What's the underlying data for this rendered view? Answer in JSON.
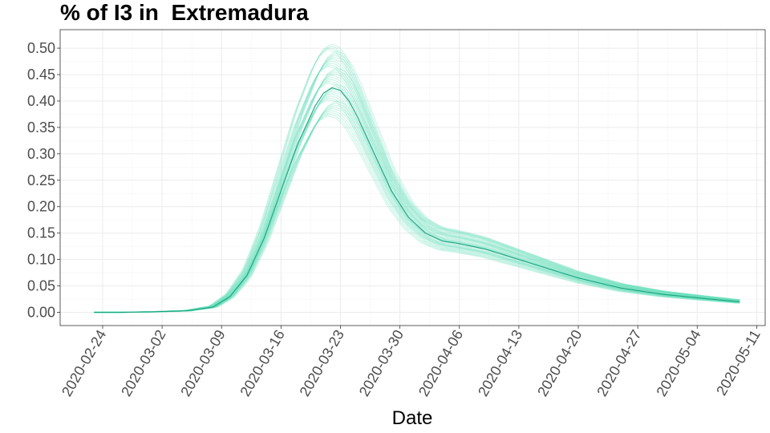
{
  "chart_data": {
    "type": "line",
    "title": "% of I3 in  Extremadura",
    "xlabel": "Date",
    "ylabel": "",
    "x_range": [
      "2020-02-19",
      "2020-05-12"
    ],
    "ylim": [
      -0.025,
      0.535
    ],
    "yticks": [
      "0.00",
      "0.05",
      "0.10",
      "0.15",
      "0.20",
      "0.25",
      "0.30",
      "0.35",
      "0.40",
      "0.45",
      "0.50"
    ],
    "xticks": [
      "2020-02-24",
      "2020-03-02",
      "2020-03-09",
      "2020-03-16",
      "2020-03-23",
      "2020-03-30",
      "2020-04-06",
      "2020-04-13",
      "2020-04-20",
      "2020-04-27",
      "2020-05-04",
      "2020-05-11"
    ],
    "grid": true,
    "legend": "none",
    "colors": {
      "simulation": "#66ddb8",
      "median": "#1aa37e",
      "band": "#20c997"
    },
    "median_series": {
      "x": [
        "2020-02-23",
        "2020-02-26",
        "2020-03-01",
        "2020-03-05",
        "2020-03-08",
        "2020-03-10",
        "2020-03-12",
        "2020-03-14",
        "2020-03-16",
        "2020-03-18",
        "2020-03-20",
        "2020-03-21",
        "2020-03-22",
        "2020-03-23",
        "2020-03-24",
        "2020-03-25",
        "2020-03-27",
        "2020-03-29",
        "2020-03-31",
        "2020-04-02",
        "2020-04-04",
        "2020-04-06",
        "2020-04-09",
        "2020-04-12",
        "2020-04-16",
        "2020-04-20",
        "2020-04-25",
        "2020-04-30",
        "2020-05-05",
        "2020-05-09"
      ],
      "y": [
        0.0,
        0.0,
        0.001,
        0.003,
        0.01,
        0.03,
        0.07,
        0.14,
        0.23,
        0.32,
        0.39,
        0.415,
        0.425,
        0.42,
        0.4,
        0.37,
        0.3,
        0.23,
        0.18,
        0.15,
        0.135,
        0.13,
        0.12,
        0.105,
        0.085,
        0.065,
        0.046,
        0.034,
        0.026,
        0.02
      ]
    },
    "peak_band": {
      "x": "2020-03-22",
      "min": 0.37,
      "max": 0.51
    },
    "simulation_count": 40
  }
}
